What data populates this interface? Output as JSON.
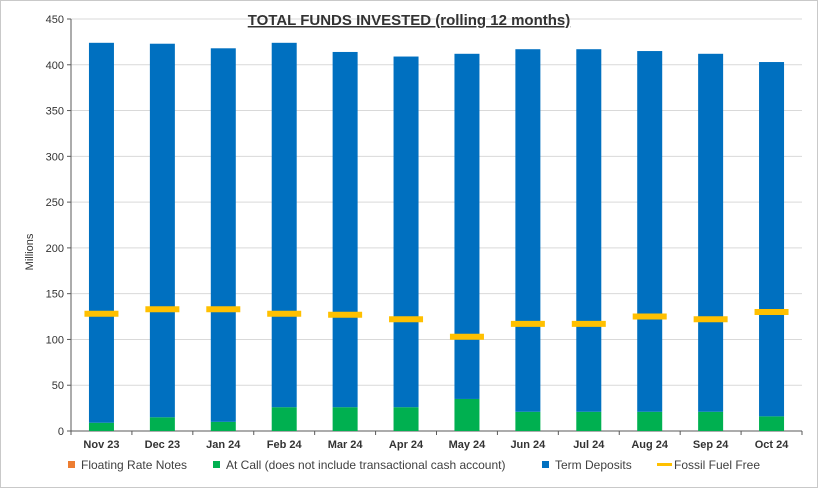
{
  "chart_data": {
    "type": "bar",
    "title": "TOTAL FUNDS INVESTED (rolling 12 months)",
    "ylabel": "Millions",
    "xlabel": "",
    "ylim": [
      0,
      450
    ],
    "yticks": [
      0,
      50,
      100,
      150,
      200,
      250,
      300,
      350,
      400,
      450
    ],
    "categories": [
      "Nov 23",
      "Dec 23",
      "Jan 24",
      "Feb 24",
      "Mar 24",
      "Apr 24",
      "May 24",
      "Jun 24",
      "Jul 24",
      "Aug 24",
      "Sep 24",
      "Oct 24"
    ],
    "stacked": true,
    "grid": true,
    "legend_position": "bottom",
    "series": [
      {
        "name": "Floating Rate Notes",
        "kind": "bar",
        "color": "#ED7D31",
        "values": [
          0,
          0,
          0,
          0,
          0,
          0,
          0,
          0,
          0,
          0,
          0,
          0
        ]
      },
      {
        "name": "At Call (does not include transactional cash account)",
        "kind": "bar",
        "color": "#00B050",
        "values": [
          9,
          15,
          10,
          26,
          26,
          26,
          35,
          21,
          21,
          21,
          21,
          16
        ]
      },
      {
        "name": "Term Deposits",
        "kind": "bar",
        "color": "#0070C0",
        "values": [
          415,
          408,
          408,
          398,
          388,
          383,
          377,
          396,
          396,
          394,
          391,
          387
        ]
      },
      {
        "name": "Fossil Fuel Free",
        "kind": "marker",
        "color": "#FFC000",
        "values": [
          128,
          133,
          133,
          128,
          127,
          122,
          103,
          117,
          117,
          125,
          122,
          130
        ]
      }
    ]
  }
}
